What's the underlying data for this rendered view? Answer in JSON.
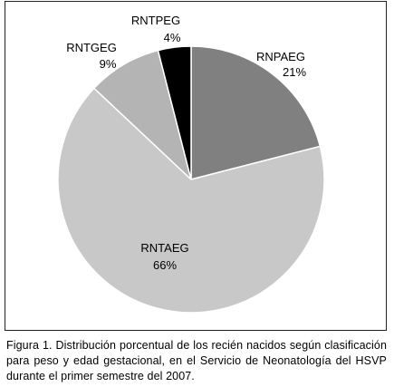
{
  "chart_data": {
    "type": "pie",
    "title": "",
    "start_angle_deg": 0,
    "direction": "clockwise",
    "slices": [
      {
        "label": "RNPAEG",
        "value": 21,
        "value_label": "21%",
        "color": "#808080"
      },
      {
        "label": "RNTAEG",
        "value": 66,
        "value_label": "66%",
        "color": "#c8c8c8"
      },
      {
        "label": "RNTGEG",
        "value": 9,
        "value_label": "9%",
        "color": "#b4b4b4"
      },
      {
        "label": "RNTPEG",
        "value": 4,
        "value_label": "4%",
        "color": "#000000"
      }
    ],
    "slice_edge_color": "#ffffff"
  },
  "caption": "Figura 1. Distribución porcentual de los recién nacidos según clasificación para peso y edad gestacional, en el Servicio de Neonatología del HSVP durante el primer semestre del 2007."
}
